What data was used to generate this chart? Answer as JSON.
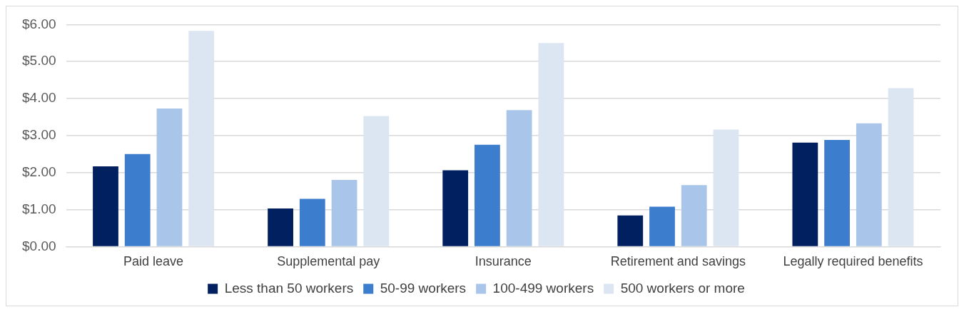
{
  "chart_data": {
    "type": "bar",
    "categories": [
      "Paid leave",
      "Supplemental pay",
      "Insurance",
      "Retirement and savings",
      "Legally required benefits"
    ],
    "series": [
      {
        "name": "Less than 50 workers",
        "color": "#002060",
        "values": [
          2.17,
          1.03,
          2.06,
          0.84,
          2.81
        ]
      },
      {
        "name": "50-99 workers",
        "color": "#3c7dce",
        "values": [
          2.5,
          1.29,
          2.75,
          1.08,
          2.88
        ]
      },
      {
        "name": "100-499 workers",
        "color": "#a9c6ea",
        "values": [
          3.73,
          1.8,
          3.69,
          1.66,
          3.33
        ]
      },
      {
        "name": "500 workers or more",
        "color": "#dce6f2",
        "values": [
          5.83,
          3.53,
          5.5,
          3.16,
          4.28
        ]
      }
    ],
    "ylim": [
      0,
      6
    ],
    "yticks": [
      {
        "value": 0,
        "label": "$0.00"
      },
      {
        "value": 1,
        "label": "$1.00"
      },
      {
        "value": 2,
        "label": "$2.00"
      },
      {
        "value": 3,
        "label": "$3.00"
      },
      {
        "value": 4,
        "label": "$4.00"
      },
      {
        "value": 5,
        "label": "$5.00"
      },
      {
        "value": 6,
        "label": "$6.00"
      }
    ],
    "grid": "y",
    "legend": "bottom"
  }
}
